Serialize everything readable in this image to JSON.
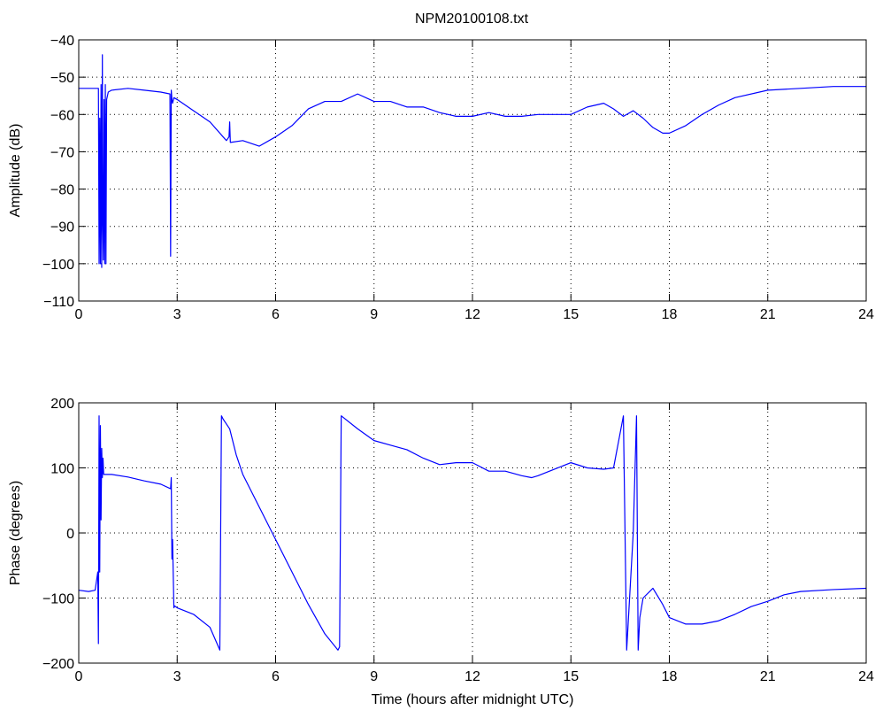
{
  "figure": {
    "title": "NPM20100108.txt",
    "line_color": "#0000ff"
  },
  "chart_data": [
    {
      "type": "line",
      "title": "NPM20100108.txt",
      "xlabel": "",
      "ylabel": "Amplitude (dB)",
      "xlim": [
        0,
        24
      ],
      "ylim": [
        -110,
        -40
      ],
      "xticks": [
        0,
        3,
        6,
        9,
        12,
        15,
        18,
        21,
        24
      ],
      "yticks": [
        -40,
        -50,
        -60,
        -70,
        -80,
        -90,
        -100,
        -110
      ],
      "grid": true,
      "series": [
        {
          "color": "#0000ff",
          "x": [
            0,
            0.5,
            0.6,
            0.62,
            0.64,
            0.66,
            0.68,
            0.7,
            0.72,
            0.73,
            0.75,
            0.77,
            0.79,
            0.81,
            0.83,
            0.85,
            0.9,
            1.0,
            1.5,
            2.0,
            2.5,
            2.78,
            2.8,
            2.82,
            2.84,
            2.86,
            2.9,
            3.0,
            3.5,
            4.0,
            4.5,
            4.58,
            4.6,
            4.62,
            5.0,
            5.5,
            6.0,
            6.5,
            7.0,
            7.5,
            8.0,
            8.5,
            9.0,
            9.5,
            10.0,
            10.5,
            11.0,
            11.5,
            12.0,
            12.5,
            13.0,
            13.5,
            14.0,
            14.5,
            15.0,
            15.5,
            16.0,
            16.3,
            16.6,
            16.9,
            17.2,
            17.5,
            17.8,
            18.0,
            18.5,
            19.0,
            19.5,
            20.0,
            21.0,
            22.0,
            23.0,
            24.0
          ],
          "y": [
            -53,
            -53,
            -53,
            -100,
            -61,
            -100,
            -52,
            -101,
            -44,
            -85,
            -99,
            -56,
            -100,
            -52,
            -100,
            -56,
            -54,
            -53.5,
            -53,
            -53.5,
            -54,
            -54.5,
            -98,
            -53.5,
            -56,
            -57,
            -55.5,
            -56,
            -59,
            -62,
            -67,
            -66,
            -62,
            -67.5,
            -67,
            -68.5,
            -66,
            -63,
            -58.5,
            -56.5,
            -56.5,
            -54.5,
            -56.5,
            -56.5,
            -58,
            -58,
            -59.5,
            -60.5,
            -60.5,
            -59.5,
            -60.5,
            -60.5,
            -60,
            -60,
            -60,
            -58,
            -57,
            -58.5,
            -60.5,
            -59,
            -61,
            -63.5,
            -65,
            -65,
            -63,
            -60,
            -57.5,
            -55.5,
            -53.5,
            -53,
            -52.5,
            -52.5
          ]
        }
      ]
    },
    {
      "type": "line",
      "title": "",
      "xlabel": "Time (hours after midnight UTC)",
      "ylabel": "Phase (degrees)",
      "xlim": [
        0,
        24
      ],
      "ylim": [
        -200,
        200
      ],
      "xticks": [
        0,
        3,
        6,
        9,
        12,
        15,
        18,
        21,
        24
      ],
      "yticks": [
        200,
        100,
        0,
        -100,
        -200
      ],
      "grid": true,
      "series": [
        {
          "color": "#0000ff",
          "x": [
            0,
            0.3,
            0.5,
            0.58,
            0.6,
            0.62,
            0.64,
            0.66,
            0.68,
            0.7,
            0.72,
            0.74,
            0.76,
            0.8,
            1.0,
            1.5,
            2.0,
            2.5,
            2.8,
            2.82,
            2.84,
            2.86,
            2.9,
            2.92,
            3.0,
            3.5,
            4.0,
            4.3,
            4.35,
            4.4,
            4.6,
            4.8,
            5.0,
            5.5,
            6.0,
            6.5,
            7.0,
            7.5,
            7.9,
            7.95,
            8.0,
            8.5,
            9.0,
            9.5,
            10.0,
            10.5,
            11.0,
            11.5,
            12.0,
            12.5,
            13.0,
            13.5,
            13.8,
            14.0,
            14.5,
            15.0,
            15.5,
            16.0,
            16.3,
            16.6,
            16.7,
            16.9,
            17.0,
            17.05,
            17.1,
            17.2,
            17.5,
            17.8,
            18.0,
            18.5,
            19.0,
            19.5,
            20.0,
            20.5,
            21.0,
            21.5,
            22.0,
            23.0,
            24.0
          ],
          "y": [
            -88,
            -90,
            -88,
            -60,
            -170,
            180,
            -60,
            165,
            20,
            130,
            85,
            115,
            90,
            90,
            90,
            86,
            80,
            75,
            68,
            85,
            -40,
            -10,
            -115,
            -112,
            -115,
            -125,
            -145,
            -180,
            180,
            175,
            160,
            120,
            90,
            40,
            -10,
            -60,
            -110,
            -155,
            -180,
            -175,
            180,
            160,
            142,
            135,
            128,
            115,
            105,
            108,
            108,
            95,
            95,
            88,
            85,
            88,
            98,
            108,
            100,
            98,
            100,
            180,
            -180,
            0,
            180,
            -180,
            -130,
            -100,
            -85,
            -110,
            -130,
            -140,
            -140,
            -135,
            -125,
            -113,
            -105,
            -95,
            -90,
            -87,
            -85
          ]
        }
      ]
    }
  ]
}
